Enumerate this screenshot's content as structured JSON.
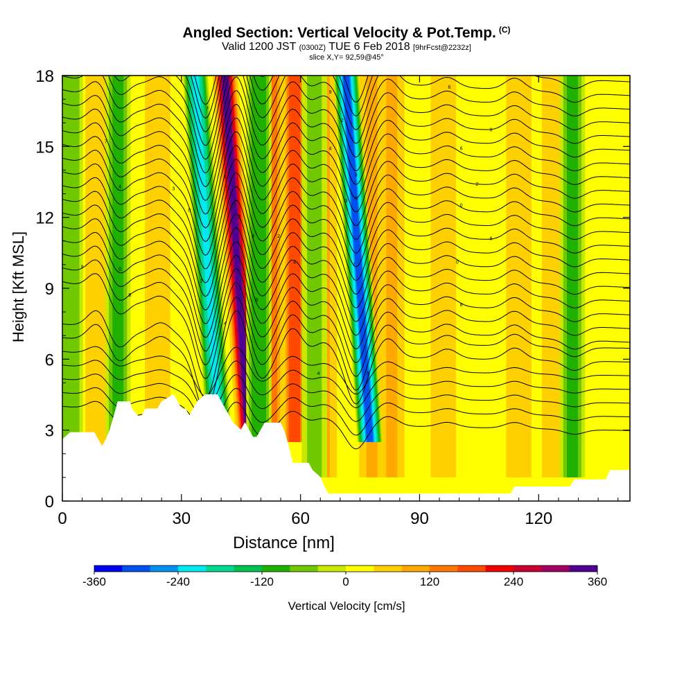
{
  "header": {
    "title": "Angled Section: Vertical Velocity & Pot.Temp.",
    "copyright": "(C)",
    "subtitle_main": "Valid 1200 JST",
    "subtitle_utc": "(0300Z)",
    "subtitle_date": "TUE 6 Feb 2018",
    "subtitle_fcst": "[9hrFcst@2232z]",
    "slice": "slice X,Y= 92,59@45°"
  },
  "chart_data": {
    "type": "heatmap",
    "xlabel": "Distance [nm]",
    "ylabel": "Height [Kft MSL]",
    "xlim": [
      0,
      143
    ],
    "ylim": [
      0,
      18
    ],
    "x_ticks": [
      0,
      30,
      60,
      90,
      120
    ],
    "y_ticks": [
      0,
      3,
      6,
      9,
      12,
      15,
      18
    ],
    "colorbar": {
      "label": "Vertical Velocity [cm/s]",
      "ticks": [
        -360,
        -240,
        -120,
        0,
        120,
        240,
        360
      ],
      "colors": [
        "#0000f0",
        "#0050f0",
        "#0090f0",
        "#00e8f0",
        "#00d890",
        "#00c050",
        "#20b000",
        "#70c800",
        "#c8e800",
        "#ffff00",
        "#ffd000",
        "#ffa800",
        "#ff7800",
        "#ff4800",
        "#f00000",
        "#c80030",
        "#a00060",
        "#500090"
      ]
    },
    "updraft_bands": [
      {
        "x": 43.5,
        "ww": 360
      },
      {
        "x": 58.5,
        "ww": 220
      },
      {
        "x": 53,
        "ww": 150
      },
      {
        "x": 66,
        "ww": 120
      },
      {
        "x": 78,
        "ww": 130
      },
      {
        "x": 83,
        "ww": 120
      },
      {
        "x": 96,
        "ww": 60
      },
      {
        "x": 115,
        "ww": 70
      },
      {
        "x": 124,
        "ww": 60
      },
      {
        "x": 9,
        "ww": 80
      },
      {
        "x": 24,
        "ww": 50
      }
    ],
    "downdraft_bands": [
      {
        "x": 36,
        "ww": -260
      },
      {
        "x": 74,
        "ww": -340
      },
      {
        "x": 14,
        "ww": -130
      },
      {
        "x": 49.5,
        "ww": -140
      },
      {
        "x": 63.5,
        "ww": -80
      },
      {
        "x": 2,
        "ww": -100
      },
      {
        "x": 128.5,
        "ww": -130
      }
    ],
    "terrain_top_kft": [
      [
        0,
        2.6
      ],
      [
        2,
        2.9
      ],
      [
        8,
        2.9
      ],
      [
        9,
        2.6
      ],
      [
        10,
        2.3
      ],
      [
        11,
        2.6
      ],
      [
        12,
        3.0
      ],
      [
        13,
        3.6
      ],
      [
        14,
        4.2
      ],
      [
        17,
        4.2
      ],
      [
        17.5,
        3.9
      ],
      [
        19,
        3.6
      ],
      [
        20,
        3.6
      ],
      [
        21,
        3.9
      ],
      [
        24,
        3.9
      ],
      [
        25,
        4.2
      ],
      [
        28,
        4.5
      ],
      [
        29,
        4.2
      ],
      [
        30,
        3.9
      ],
      [
        31,
        3.9
      ],
      [
        32,
        3.6
      ],
      [
        33,
        3.9
      ],
      [
        34,
        4.2
      ],
      [
        36,
        4.5
      ],
      [
        39,
        4.5
      ],
      [
        40,
        4.2
      ],
      [
        41,
        3.9
      ],
      [
        42,
        3.6
      ],
      [
        43,
        3.3
      ],
      [
        45,
        3.0
      ],
      [
        46,
        3.3
      ],
      [
        47,
        3.0
      ],
      [
        48,
        2.7
      ],
      [
        49,
        2.7
      ],
      [
        50,
        3.0
      ],
      [
        51,
        3.3
      ],
      [
        55,
        3.3
      ],
      [
        56,
        2.9
      ],
      [
        57,
        2.3
      ],
      [
        58,
        1.6
      ],
      [
        62,
        1.6
      ],
      [
        63,
        1.3
      ],
      [
        65,
        1.0
      ],
      [
        66,
        0.6
      ],
      [
        67,
        0.3
      ],
      [
        113,
        0.3
      ],
      [
        114,
        0.6
      ],
      [
        128,
        0.6
      ],
      [
        129,
        0.9
      ],
      [
        137,
        0.9
      ],
      [
        138,
        1.3
      ],
      [
        143,
        1.3
      ]
    ],
    "theta_contour_labels": [
      {
        "text": "7",
        "x": 11,
        "y": 15.2
      },
      {
        "text": "4",
        "x": 14.5,
        "y": 13.3
      },
      {
        "text": "3",
        "x": 28,
        "y": 13.2
      },
      {
        "text": "0",
        "x": 32,
        "y": 12.3
      },
      {
        "text": "7",
        "x": 36.5,
        "y": 16.6
      },
      {
        "text": "4",
        "x": 41,
        "y": 13.7
      },
      {
        "text": "3",
        "x": 43.5,
        "y": 12.5
      },
      {
        "text": "3",
        "x": 44.5,
        "y": 12.0
      },
      {
        "text": "9",
        "x": 48,
        "y": 11.2
      },
      {
        "text": "2",
        "x": 54.5,
        "y": 11.2
      },
      {
        "text": "4",
        "x": 58.5,
        "y": 10.1
      },
      {
        "text": "9",
        "x": 67.5,
        "y": 17.3
      },
      {
        "text": "2",
        "x": 70.5,
        "y": 16.1
      },
      {
        "text": "4",
        "x": 67.5,
        "y": 14.9
      },
      {
        "text": "8",
        "x": 74,
        "y": 13.8
      },
      {
        "text": "8",
        "x": 74,
        "y": 12.8
      },
      {
        "text": "3",
        "x": 71.5,
        "y": 12.7
      },
      {
        "text": "6",
        "x": 97.5,
        "y": 17.5
      },
      {
        "text": "8",
        "x": 108,
        "y": 15.7
      },
      {
        "text": "6",
        "x": 100.5,
        "y": 14.9
      },
      {
        "text": "2",
        "x": 104.5,
        "y": 13.4
      },
      {
        "text": "0",
        "x": 100.5,
        "y": 12.5
      },
      {
        "text": "6",
        "x": 108,
        "y": 11.1
      },
      {
        "text": "0",
        "x": 99.5,
        "y": 10.1
      },
      {
        "text": "8",
        "x": 100.5,
        "y": 8.3
      },
      {
        "text": "7",
        "x": 73.5,
        "y": 10.0
      },
      {
        "text": "9",
        "x": 5,
        "y": 9.9
      },
      {
        "text": "0",
        "x": 14.5,
        "y": 9.8
      },
      {
        "text": "6",
        "x": 17,
        "y": 8.7
      },
      {
        "text": "2",
        "x": 35,
        "y": 9.3
      },
      {
        "text": "4",
        "x": 41,
        "y": 7.5
      },
      {
        "text": "5",
        "x": 49,
        "y": 8.5
      },
      {
        "text": "4",
        "x": 64.5,
        "y": 5.4
      },
      {
        "text": "5",
        "x": 77,
        "y": 5.4
      }
    ]
  }
}
